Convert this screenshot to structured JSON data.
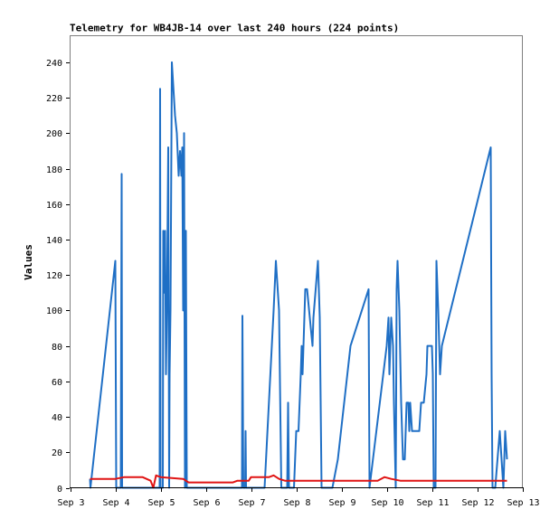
{
  "chart_data": {
    "type": "line",
    "title": "Telemetry for WB4JB-14 over last 240 hours (224 points)",
    "xlabel": "",
    "ylabel": "Values",
    "x_ticks": [
      "Sep 3",
      "Sep 4",
      "Sep 5",
      "Sep 6",
      "Sep 7",
      "Sep 8",
      "Sep 9",
      "Sep 10",
      "Sep 11",
      "Sep 12",
      "Sep 13"
    ],
    "y_ticks": [
      0,
      20,
      40,
      60,
      80,
      100,
      120,
      140,
      160,
      180,
      200,
      220,
      240
    ],
    "xlim": [
      0,
      10
    ],
    "ylim": [
      0,
      255
    ],
    "grid": false,
    "legend": "none",
    "series": [
      {
        "color": "#1f6fc5",
        "points": [
          [
            0.44,
            5
          ],
          [
            0.45,
            0
          ],
          [
            1.0,
            128
          ],
          [
            1.02,
            0
          ],
          [
            1.12,
            0
          ],
          [
            1.14,
            177
          ],
          [
            1.15,
            0
          ],
          [
            1.4,
            0
          ],
          [
            1.98,
            0
          ],
          [
            1.99,
            225
          ],
          [
            2.0,
            0
          ],
          [
            2.05,
            0
          ],
          [
            2.06,
            145
          ],
          [
            2.08,
            110
          ],
          [
            2.1,
            145
          ],
          [
            2.12,
            64
          ],
          [
            2.14,
            100
          ],
          [
            2.17,
            192
          ],
          [
            2.19,
            0
          ],
          [
            2.2,
            64
          ],
          [
            2.22,
            100
          ],
          [
            2.25,
            240
          ],
          [
            2.32,
            210
          ],
          [
            2.36,
            200
          ],
          [
            2.4,
            176
          ],
          [
            2.43,
            190
          ],
          [
            2.46,
            176
          ],
          [
            2.48,
            192
          ],
          [
            2.5,
            100
          ],
          [
            2.52,
            200
          ],
          [
            2.54,
            0
          ],
          [
            2.56,
            145
          ],
          [
            2.58,
            0
          ],
          [
            2.8,
            0
          ],
          [
            3.8,
            0
          ],
          [
            3.81,
            97
          ],
          [
            3.83,
            0
          ],
          [
            3.87,
            0
          ],
          [
            3.88,
            32
          ],
          [
            3.89,
            0
          ],
          [
            4.3,
            0
          ],
          [
            4.5,
            100
          ],
          [
            4.55,
            128
          ],
          [
            4.62,
            100
          ],
          [
            4.67,
            0
          ],
          [
            4.8,
            0
          ],
          [
            4.82,
            48
          ],
          [
            4.84,
            0
          ],
          [
            4.95,
            0
          ],
          [
            5.0,
            32
          ],
          [
            5.05,
            32
          ],
          [
            5.1,
            64
          ],
          [
            5.12,
            80
          ],
          [
            5.14,
            64
          ],
          [
            5.2,
            112
          ],
          [
            5.24,
            112
          ],
          [
            5.3,
            96
          ],
          [
            5.36,
            80
          ],
          [
            5.38,
            96
          ],
          [
            5.48,
            128
          ],
          [
            5.52,
            96
          ],
          [
            5.56,
            0
          ],
          [
            5.8,
            0
          ],
          [
            5.92,
            16
          ],
          [
            6.2,
            80
          ],
          [
            6.6,
            112
          ],
          [
            6.62,
            0
          ],
          [
            7.0,
            80
          ],
          [
            7.04,
            96
          ],
          [
            7.06,
            64
          ],
          [
            7.1,
            96
          ],
          [
            7.14,
            80
          ],
          [
            7.16,
            48
          ],
          [
            7.2,
            0
          ],
          [
            7.22,
            112
          ],
          [
            7.24,
            128
          ],
          [
            7.28,
            100
          ],
          [
            7.32,
            48
          ],
          [
            7.34,
            32
          ],
          [
            7.36,
            16
          ],
          [
            7.4,
            16
          ],
          [
            7.44,
            48
          ],
          [
            7.48,
            48
          ],
          [
            7.5,
            32
          ],
          [
            7.52,
            48
          ],
          [
            7.56,
            32
          ],
          [
            7.62,
            32
          ],
          [
            7.68,
            32
          ],
          [
            7.72,
            32
          ],
          [
            7.76,
            48
          ],
          [
            7.82,
            48
          ],
          [
            7.88,
            64
          ],
          [
            7.9,
            80
          ],
          [
            8.0,
            80
          ],
          [
            8.02,
            64
          ],
          [
            8.04,
            0
          ],
          [
            8.08,
            0
          ],
          [
            8.1,
            128
          ],
          [
            8.14,
            100
          ],
          [
            8.18,
            64
          ],
          [
            8.22,
            80
          ],
          [
            9.3,
            192
          ],
          [
            9.32,
            64
          ],
          [
            9.34,
            0
          ],
          [
            9.4,
            0
          ],
          [
            9.45,
            16
          ],
          [
            9.5,
            32
          ],
          [
            9.54,
            16
          ],
          [
            9.58,
            0
          ],
          [
            9.62,
            32
          ],
          [
            9.66,
            16
          ]
        ]
      },
      {
        "color": "#e01414",
        "points": [
          [
            0.44,
            5
          ],
          [
            1.0,
            5
          ],
          [
            1.2,
            6
          ],
          [
            1.6,
            6
          ],
          [
            1.78,
            4
          ],
          [
            1.84,
            0
          ],
          [
            1.9,
            7
          ],
          [
            2.0,
            6
          ],
          [
            2.5,
            5
          ],
          [
            2.62,
            3
          ],
          [
            3.6,
            3
          ],
          [
            3.7,
            4
          ],
          [
            3.95,
            4
          ],
          [
            4.0,
            6
          ],
          [
            4.4,
            6
          ],
          [
            4.5,
            7
          ],
          [
            4.62,
            5
          ],
          [
            4.75,
            4
          ],
          [
            5.6,
            4
          ],
          [
            5.72,
            4
          ],
          [
            6.8,
            4
          ],
          [
            6.95,
            6
          ],
          [
            7.1,
            5
          ],
          [
            7.3,
            4
          ],
          [
            9.5,
            4
          ],
          [
            9.66,
            4
          ]
        ]
      }
    ]
  }
}
